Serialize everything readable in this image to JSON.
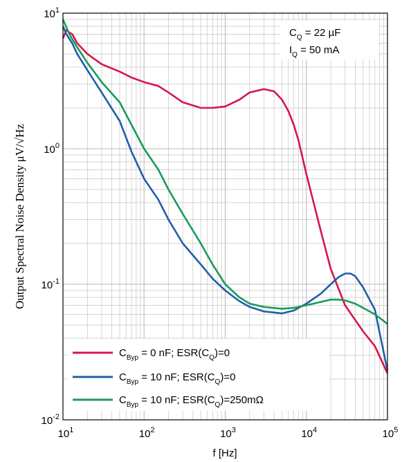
{
  "chart_data": {
    "type": "line",
    "x_scale": "log",
    "y_scale": "log",
    "xlim": [
      10,
      100000
    ],
    "ylim": [
      0.01,
      10
    ],
    "grid": true,
    "legend_position": "bottom-left",
    "xlabel": "f [Hz]",
    "ylabel": "Output Spectral Noise Density μV/√Hz",
    "x_ticks": [
      {
        "base": "10",
        "exp": "1"
      },
      {
        "base": "10",
        "exp": "2"
      },
      {
        "base": "10",
        "exp": "3"
      },
      {
        "base": "10",
        "exp": "4"
      },
      {
        "base": "10",
        "exp": "5"
      }
    ],
    "y_ticks": [
      {
        "base": "10",
        "exp": "-2"
      },
      {
        "base": "10",
        "exp": "-1"
      },
      {
        "base": "10",
        "exp": "0"
      },
      {
        "base": "10",
        "exp": "1"
      }
    ],
    "annotations": [
      {
        "main": "C",
        "sub": "Q",
        "rest": " = 22 µF"
      },
      {
        "main": "I",
        "sub": "Q",
        "rest": " = 50 mA"
      }
    ],
    "series": [
      {
        "name": "C_Byp = 0 nF; ESR(C_Q)=0",
        "color": "#d7154a",
        "x": [
          10,
          11,
          12,
          13,
          15,
          20,
          30,
          50,
          70,
          100,
          150,
          200,
          300,
          500,
          700,
          1000,
          1500,
          2000,
          3000,
          4000,
          5000,
          6000,
          7000,
          8000,
          10000,
          15000,
          20000,
          30000,
          50000,
          70000,
          100000
        ],
        "y": [
          6.5,
          7.5,
          7.2,
          7.0,
          6.0,
          5.0,
          4.2,
          3.7,
          3.35,
          3.1,
          2.9,
          2.6,
          2.2,
          2.0,
          2.0,
          2.05,
          2.3,
          2.6,
          2.75,
          2.65,
          2.3,
          1.9,
          1.5,
          1.15,
          0.65,
          0.25,
          0.13,
          0.07,
          0.045,
          0.035,
          0.022
        ]
      },
      {
        "name": "C_Byp = 10 nF; ESR(C_Q)=0",
        "color": "#1f5fa5",
        "x": [
          10,
          11,
          13,
          15,
          20,
          30,
          50,
          70,
          100,
          150,
          200,
          300,
          500,
          700,
          1000,
          1500,
          2000,
          3000,
          5000,
          7000,
          10000,
          15000,
          20000,
          25000,
          30000,
          35000,
          40000,
          50000,
          70000,
          100000
        ],
        "y": [
          8.0,
          7.0,
          6.0,
          5.0,
          3.8,
          2.6,
          1.6,
          0.95,
          0.6,
          0.42,
          0.3,
          0.2,
          0.14,
          0.11,
          0.09,
          0.075,
          0.068,
          0.063,
          0.061,
          0.064,
          0.072,
          0.085,
          0.1,
          0.113,
          0.12,
          0.12,
          0.115,
          0.095,
          0.065,
          0.023
        ]
      },
      {
        "name": "C_Byp = 10 nF; ESR(C_Q)=250mΩ",
        "color": "#1a9a5a",
        "x": [
          10,
          12,
          15,
          20,
          30,
          50,
          70,
          100,
          150,
          200,
          300,
          500,
          700,
          1000,
          1500,
          2000,
          3000,
          5000,
          7000,
          10000,
          15000,
          20000,
          25000,
          30000,
          40000,
          50000,
          70000,
          100000
        ],
        "y": [
          9.0,
          7.0,
          5.6,
          4.3,
          3.1,
          2.2,
          1.5,
          1.0,
          0.7,
          0.5,
          0.33,
          0.2,
          0.14,
          0.1,
          0.08,
          0.072,
          0.068,
          0.066,
          0.067,
          0.07,
          0.074,
          0.077,
          0.077,
          0.076,
          0.072,
          0.067,
          0.06,
          0.051
        ]
      }
    ],
    "legend": [
      {
        "pre": "C",
        "sub1": "Byp",
        "mid": " = 0 nF; ESR(C",
        "sub2": "Q",
        "post": ")=0"
      },
      {
        "pre": "C",
        "sub1": "Byp",
        "mid": " = 10 nF; ESR(C",
        "sub2": "Q",
        "post": ")=0"
      },
      {
        "pre": "C",
        "sub1": "Byp",
        "mid": " = 10 nF; ESR(C",
        "sub2": "Q",
        "post": ")=250mΩ"
      }
    ]
  }
}
